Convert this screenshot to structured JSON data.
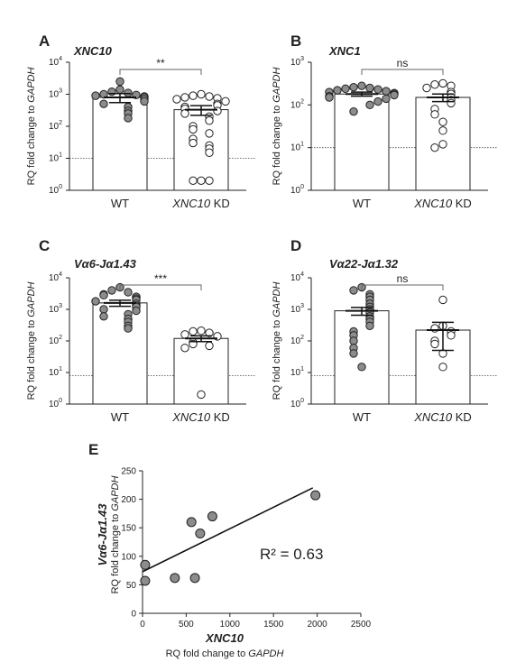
{
  "chart_data": [
    {
      "type": "bar",
      "panel": "A",
      "title": "XNC10",
      "ylabel": "RQ fold change to GAPDH",
      "yscale": "log",
      "ylim": [
        1,
        10000
      ],
      "yticks": [
        {
          "base": "10",
          "exp": "0"
        },
        {
          "base": "10",
          "exp": "1"
        },
        {
          "base": "10",
          "exp": "2"
        },
        {
          "base": "10",
          "exp": "3"
        },
        {
          "base": "10",
          "exp": "4"
        }
      ],
      "categories": [
        {
          "label": "WT",
          "italic": "",
          "suffix": ""
        },
        {
          "label": "",
          "italic": "XNC10",
          "suffix": " KD"
        }
      ],
      "bar_values": [
        800,
        330
      ],
      "errors": [
        250,
        110
      ],
      "threshold": 10,
      "significance": "**",
      "points": [
        [
          2500,
          1400,
          1200,
          1100,
          1000,
          950,
          900,
          850,
          800,
          700,
          600,
          500,
          400,
          300,
          250,
          180
        ],
        [
          1000,
          900,
          850,
          800,
          750,
          700,
          600,
          500,
          450,
          400,
          350,
          300,
          250,
          200,
          150,
          100,
          80,
          60,
          40,
          30,
          25,
          20,
          15,
          2,
          2,
          2
        ]
      ],
      "point_colors": [
        "#8c8c8c",
        "#ffffff"
      ]
    },
    {
      "type": "bar",
      "panel": "B",
      "title": "XNC1",
      "ylabel": "RQ fold change to GAPDH",
      "yscale": "log",
      "ylim": [
        1,
        1000
      ],
      "yticks": [
        {
          "base": "10",
          "exp": "0"
        },
        {
          "base": "10",
          "exp": "1"
        },
        {
          "base": "10",
          "exp": "2"
        },
        {
          "base": "10",
          "exp": "3"
        }
      ],
      "categories": [
        {
          "label": "WT",
          "italic": "",
          "suffix": ""
        },
        {
          "label": "",
          "italic": "XNC10",
          "suffix": " KD"
        }
      ],
      "bar_values": [
        180,
        150
      ],
      "errors": [
        20,
        30
      ],
      "threshold": 10,
      "significance": "ns",
      "points": [
        [
          280,
          260,
          250,
          240,
          230,
          220,
          210,
          200,
          190,
          180,
          170,
          160,
          150,
          140,
          120,
          100,
          70
        ],
        [
          320,
          300,
          280,
          250,
          200,
          180,
          150,
          130,
          110,
          80,
          60,
          40,
          25,
          12,
          10
        ]
      ],
      "point_colors": [
        "#8c8c8c",
        "#ffffff"
      ]
    },
    {
      "type": "bar",
      "panel": "C",
      "title": "Vα6-Jα1.43",
      "ylabel": "RQ fold change to GAPDH",
      "yscale": "log",
      "ylim": [
        1,
        10000
      ],
      "yticks": [
        {
          "base": "10",
          "exp": "0"
        },
        {
          "base": "10",
          "exp": "1"
        },
        {
          "base": "10",
          "exp": "2"
        },
        {
          "base": "10",
          "exp": "3"
        },
        {
          "base": "10",
          "exp": "4"
        }
      ],
      "categories": [
        {
          "label": "WT",
          "italic": "",
          "suffix": ""
        },
        {
          "label": "",
          "italic": "XNC10",
          "suffix": " KD"
        }
      ],
      "bar_values": [
        1600,
        120
      ],
      "errors": [
        350,
        25
      ],
      "threshold": 8,
      "significance": "***",
      "points": [
        [
          5000,
          4000,
          3500,
          3000,
          2800,
          2500,
          2200,
          2000,
          1800,
          1500,
          1300,
          1200,
          1000,
          900,
          700,
          600,
          500,
          400,
          300,
          250
        ],
        [
          210,
          200,
          180,
          160,
          140,
          90,
          80,
          70,
          60,
          2
        ]
      ],
      "point_colors": [
        "#8c8c8c",
        "#ffffff"
      ]
    },
    {
      "type": "bar",
      "panel": "D",
      "title": "Vα22-Jα1.32",
      "ylabel": "RQ fold change to GAPDH",
      "yscale": "log",
      "ylim": [
        1,
        10000
      ],
      "yticks": [
        {
          "base": "10",
          "exp": "0"
        },
        {
          "base": "10",
          "exp": "1"
        },
        {
          "base": "10",
          "exp": "2"
        },
        {
          "base": "10",
          "exp": "3"
        },
        {
          "base": "10",
          "exp": "4"
        }
      ],
      "categories": [
        {
          "label": "WT",
          "italic": "",
          "suffix": ""
        },
        {
          "label": "",
          "italic": "XNC10",
          "suffix": " KD"
        }
      ],
      "bar_values": [
        900,
        220
      ],
      "errors": [
        250,
        170
      ],
      "threshold": 8,
      "significance": "ns",
      "points": [
        [
          5000,
          4000,
          3000,
          2500,
          2000,
          1500,
          1200,
          1000,
          800,
          600,
          500,
          400,
          300,
          200,
          150,
          100,
          60,
          40,
          15
        ],
        [
          2000,
          300,
          250,
          200,
          150,
          100,
          80,
          40,
          15
        ]
      ],
      "point_colors": [
        "#8c8c8c",
        "#ffffff"
      ]
    },
    {
      "type": "scatter",
      "panel": "E",
      "ylabel_main": "Vα6-Jα1.43",
      "ylabel_sub_prefix": "RQ fold change to ",
      "ylabel_sub_italic": "GAPDH",
      "xlabel_main": "XNC10",
      "xlabel_sub_prefix": "RQ fold change to ",
      "xlabel_sub_italic": "GAPDH",
      "xlim": [
        0,
        2500
      ],
      "ylim": [
        0,
        250
      ],
      "xticks": [
        0,
        500,
        1000,
        1500,
        2000,
        2500
      ],
      "yticks": [
        0,
        50,
        100,
        150,
        200,
        250
      ],
      "points": [
        [
          30,
          85
        ],
        [
          30,
          57
        ],
        [
          370,
          62
        ],
        [
          560,
          160
        ],
        [
          600,
          62
        ],
        [
          660,
          140
        ],
        [
          800,
          170
        ],
        [
          1980,
          207
        ]
      ],
      "fit_line": [
        [
          0,
          73
        ],
        [
          1950,
          220
        ]
      ],
      "annotation": "R² = 0.63",
      "point_color": "#8c8c8c"
    }
  ]
}
